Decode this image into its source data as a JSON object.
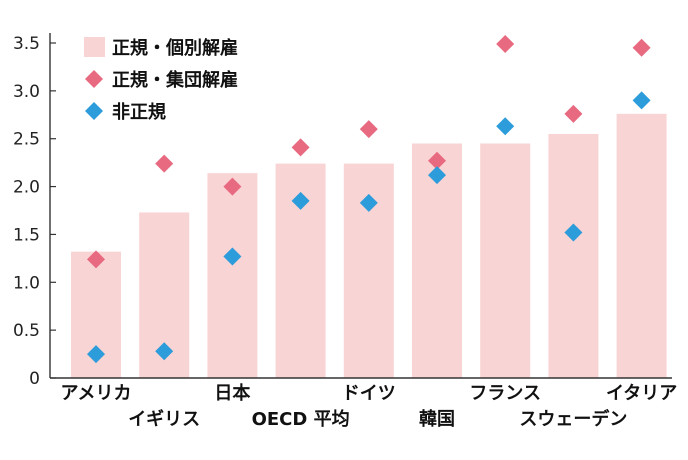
{
  "chart_data": {
    "type": "bar",
    "title": "",
    "xlabel": "",
    "ylabel": "",
    "ylim": [
      0,
      3.5
    ],
    "yticks": [
      "0",
      "0.5",
      "1.0",
      "1.5",
      "2.0",
      "2.5",
      "3.0",
      "3.5"
    ],
    "ytick_values": [
      0,
      0.5,
      1.0,
      1.5,
      2.0,
      2.5,
      3.0,
      3.5
    ],
    "grid": false,
    "legend_position": "top-left",
    "categories": [
      "アメリカ",
      "イギリス",
      "日本",
      "OECD 平均",
      "ドイツ",
      "韓国",
      "フランス",
      "スウェーデン",
      "イタリア"
    ],
    "series": [
      {
        "name": "正規・個別解雇",
        "kind": "bar",
        "color": "#f9d4d4",
        "values": [
          1.32,
          1.73,
          2.14,
          2.24,
          2.24,
          2.45,
          2.45,
          2.55,
          2.76
        ]
      },
      {
        "name": "正規・集団解雇",
        "kind": "marker",
        "color": "#e86a80",
        "values": [
          1.24,
          2.24,
          2.0,
          2.41,
          2.6,
          2.27,
          3.49,
          2.76,
          3.45
        ]
      },
      {
        "name": "非正規",
        "kind": "marker",
        "color": "#2d9cdb",
        "values": [
          0.25,
          0.28,
          1.27,
          1.85,
          1.83,
          2.12,
          2.63,
          1.52,
          2.9
        ]
      }
    ]
  }
}
